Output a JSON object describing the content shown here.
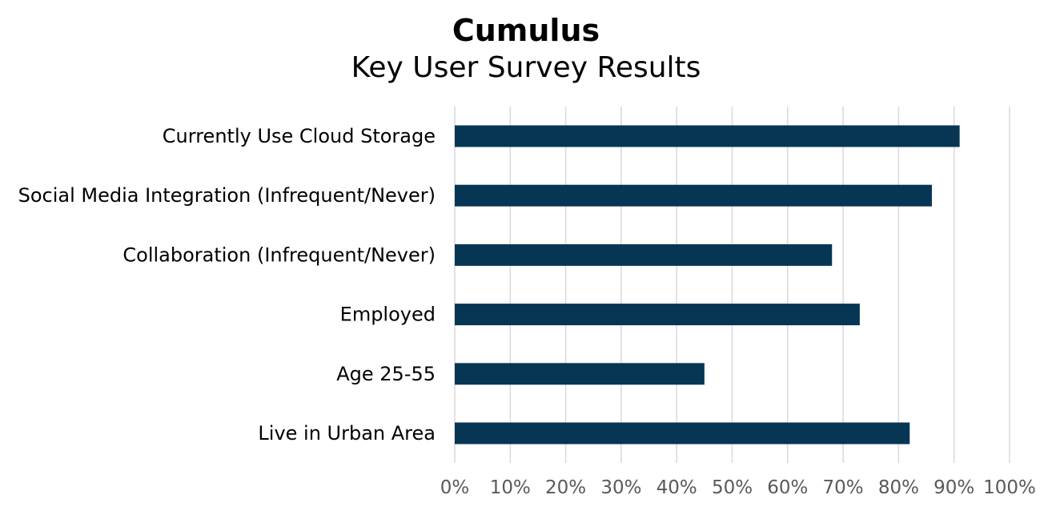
{
  "chart_data": {
    "type": "bar",
    "orientation": "horizontal",
    "title": "Cumulus",
    "subtitle": "Key User Survey Results",
    "categories": [
      "Currently Use Cloud Storage",
      "Social Media Integration (Infrequent/Never)",
      "Collaboration (Infrequent/Never)",
      "Employed",
      "Age 25-55",
      "Live in Urban Area"
    ],
    "values": [
      91,
      86,
      68,
      73,
      45,
      82
    ],
    "xlim": [
      0,
      100
    ],
    "x_ticks": [
      "0%",
      "10%",
      "20%",
      "30%",
      "40%",
      "50%",
      "60%",
      "70%",
      "80%",
      "90%",
      "100%"
    ],
    "grid": true,
    "legend": "none",
    "bar_color": "#073654",
    "grid_color": "#d9d9d9"
  }
}
